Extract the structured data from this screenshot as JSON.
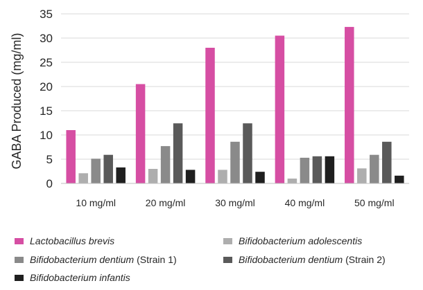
{
  "chart_data": {
    "type": "bar",
    "ylabel": "GABA Produced (mg/ml)",
    "xlabel": "",
    "ylim": [
      0,
      35
    ],
    "yticks": [
      0,
      5,
      10,
      15,
      20,
      25,
      30,
      35
    ],
    "grid": "horizontal",
    "legend_position": "bottom",
    "categories": [
      "10 mg/ml",
      "20 mg/ml",
      "30 mg/ml",
      "40 mg/ml",
      "50 mg/ml"
    ],
    "series": [
      {
        "name": "Lactobacillus brevis",
        "species": "Lactobacillus brevis",
        "strain": "",
        "color": "#d64ea3",
        "values": [
          11.0,
          20.5,
          28.0,
          30.5,
          32.3
        ]
      },
      {
        "name": "Bifidobacterium adolescentis",
        "species": "Bifidobacterium adolescentis",
        "strain": "",
        "color": "#aeaeae",
        "values": [
          2.1,
          3.0,
          2.8,
          1.0,
          3.1
        ]
      },
      {
        "name": "Bifidobacterium dentium (Strain 1)",
        "species": "Bifidobacterium dentium",
        "strain": "(Strain 1)",
        "color": "#8a8a8a",
        "values": [
          5.1,
          7.7,
          8.6,
          5.3,
          5.9
        ]
      },
      {
        "name": "Bifidobacterium dentium (Strain 2)",
        "species": "Bifidobacterium dentium",
        "strain": "(Strain 2)",
        "color": "#5a5a5a",
        "values": [
          5.9,
          12.4,
          12.4,
          5.6,
          8.6
        ]
      },
      {
        "name": "Bifidobacterium infantis",
        "species": "Bifidobacterium infantis",
        "strain": "",
        "color": "#1f1f1f",
        "values": [
          3.3,
          2.8,
          2.4,
          5.6,
          1.6
        ]
      }
    ]
  }
}
